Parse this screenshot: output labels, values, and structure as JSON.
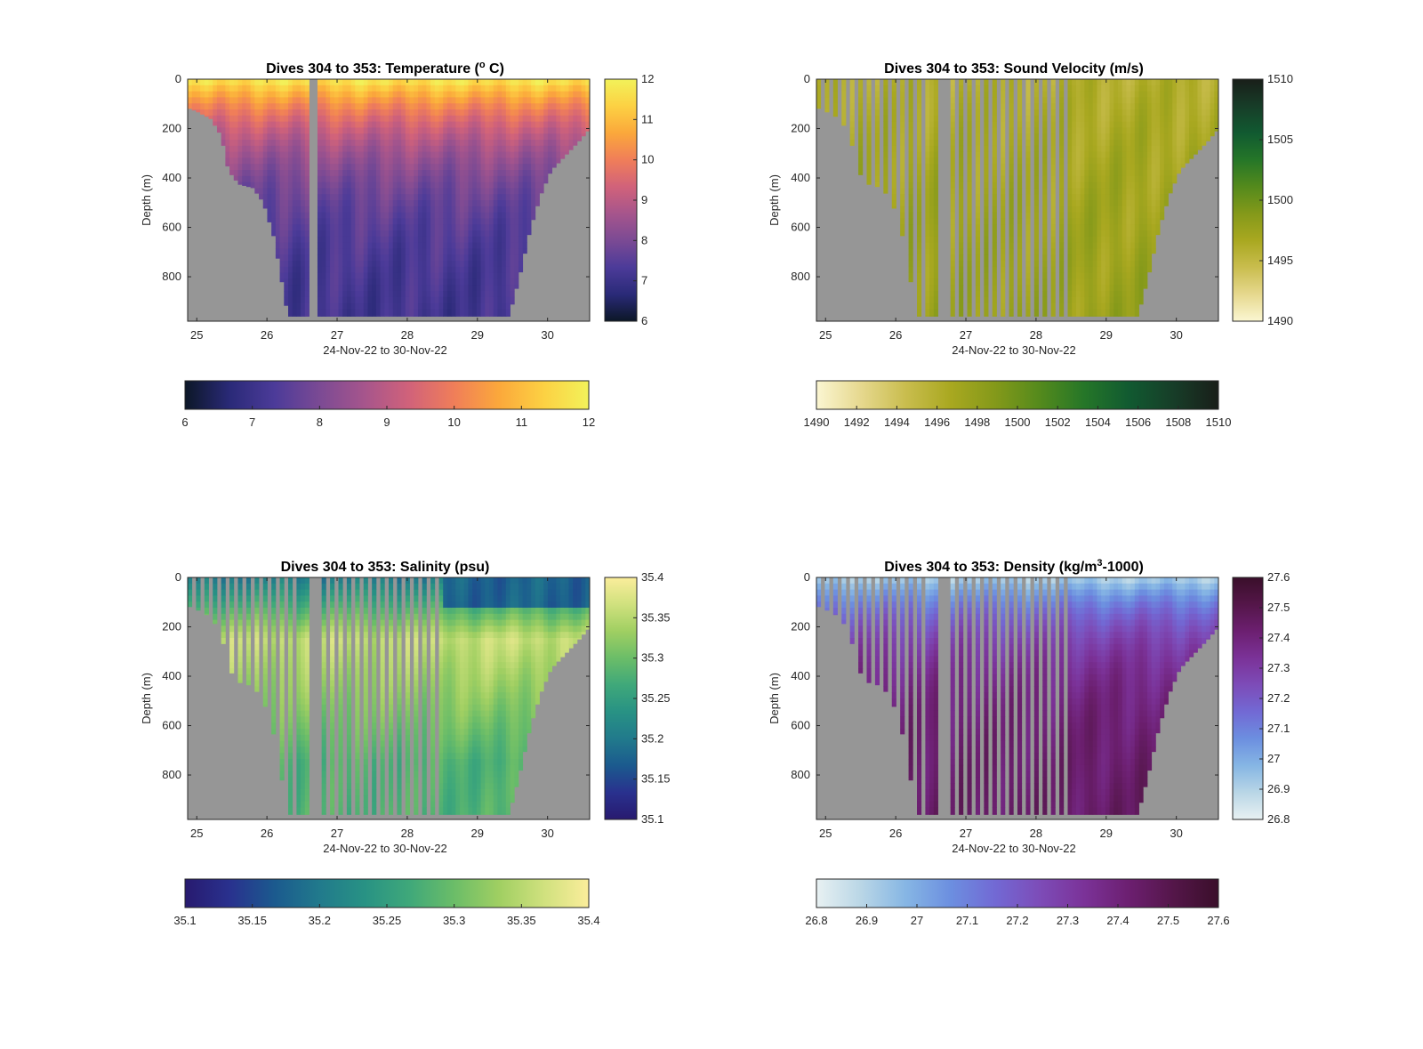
{
  "figure": {
    "background": "#ffffff",
    "nan_color": "#969696",
    "days": [
      25,
      26,
      27,
      28,
      29,
      30
    ]
  },
  "chart_data": [
    {
      "type": "heatmap",
      "id": "temperature",
      "title_prefix": "Dives 304 to 353: Temperature (",
      "title_sup": "o",
      "title_suffix": " C)",
      "xlabel": "24-Nov-22 to 30-Nov-22",
      "ylabel": "Depth (m)",
      "xlim": [
        24.87,
        30.6
      ],
      "ylim": [
        0,
        980
      ],
      "xticks": [
        "25",
        "26",
        "27",
        "28",
        "29",
        "30"
      ],
      "yticks": [
        "0",
        "200",
        "400",
        "600",
        "800"
      ],
      "clim": [
        6,
        12
      ],
      "colormap": [
        "#0c1727",
        "#2a2a78",
        "#4c3b99",
        "#7b4a94",
        "#a6558c",
        "#d1627a",
        "#f07e59",
        "#fba83b",
        "#fcd143",
        "#f2f25a"
      ],
      "colorbar_right_ticks": [
        "6",
        "7",
        "8",
        "9",
        "10",
        "11",
        "12"
      ],
      "colorbar_bottom_ticks": [
        "6",
        "7",
        "8",
        "9",
        "10",
        "11",
        "12"
      ],
      "value_model": {
        "surface": 11.8,
        "deep": 7.0,
        "scale_depth": 260
      },
      "profile_gaps": []
    },
    {
      "type": "heatmap",
      "id": "sound-velocity",
      "title_prefix": "Dives 304 to 353: Sound Velocity (m/s)",
      "title_sup": "",
      "title_suffix": "",
      "xlabel": "24-Nov-22 to 30-Nov-22",
      "ylabel": "Depth (m)",
      "xlim": [
        24.87,
        30.6
      ],
      "ylim": [
        0,
        980
      ],
      "xticks": [
        "25",
        "26",
        "27",
        "28",
        "29",
        "30"
      ],
      "yticks": [
        "0",
        "200",
        "400",
        "600",
        "800"
      ],
      "clim": [
        1490,
        1510
      ],
      "colormap": [
        "#fbf6d2",
        "#e6d88e",
        "#c9bd4e",
        "#a9a820",
        "#84991a",
        "#548a1c",
        "#257628",
        "#115a31",
        "#173d28",
        "#191e19"
      ],
      "colorbar_right_ticks": [
        "1490",
        "1495",
        "1500",
        "1505",
        "1510"
      ],
      "colorbar_bottom_ticks": [
        "1490",
        "1492",
        "1494",
        "1496",
        "1498",
        "1500",
        "1502",
        "1504",
        "1506",
        "1508",
        "1510"
      ],
      "value_model": {
        "surface": 1496.0,
        "deep": 1498.0,
        "scale_depth": 600
      },
      "profile_gaps": [
        [
          24.87,
          26.5
        ],
        [
          26.72,
          28.5
        ]
      ]
    },
    {
      "type": "heatmap",
      "id": "salinity",
      "title_prefix": "Dives 304 to 353: Salinity (psu)",
      "title_sup": "",
      "title_suffix": "",
      "xlabel": "24-Nov-22 to 30-Nov-22",
      "ylabel": "Depth (m)",
      "xlim": [
        24.87,
        30.6
      ],
      "ylim": [
        0,
        980
      ],
      "xticks": [
        "25",
        "26",
        "27",
        "28",
        "29",
        "30"
      ],
      "yticks": [
        "0",
        "200",
        "400",
        "600",
        "800"
      ],
      "clim": [
        35.1,
        35.4
      ],
      "colormap": [
        "#281a6f",
        "#29318e",
        "#1b5a8e",
        "#217a8c",
        "#289284",
        "#3fa87a",
        "#6bbd68",
        "#a0cf62",
        "#d0e17e",
        "#fbed9b"
      ],
      "colorbar_right_ticks": [
        "35.1",
        "35.15",
        "35.2",
        "35.25",
        "35.3",
        "35.35",
        "35.4"
      ],
      "colorbar_bottom_ticks": [
        "35.1",
        "35.15",
        "35.2",
        "35.25",
        "35.3",
        "35.35",
        "35.4"
      ],
      "value_model": {
        "surface": 35.2,
        "peak": 35.36,
        "peak_depth": 250,
        "deep": 35.28
      },
      "profile_gaps": [
        [
          24.87,
          26.5
        ],
        [
          26.72,
          28.5
        ]
      ]
    },
    {
      "type": "heatmap",
      "id": "density",
      "title_prefix": "Dives 304 to 353: Density (kg/m",
      "title_sup": "3",
      "title_suffix": "-1000)",
      "xlabel": "24-Nov-22 to 30-Nov-22",
      "ylabel": "Depth (m)",
      "xlim": [
        24.87,
        30.6
      ],
      "ylim": [
        0,
        980
      ],
      "xticks": [
        "25",
        "26",
        "27",
        "28",
        "29",
        "30"
      ],
      "yticks": [
        "0",
        "200",
        "400",
        "600",
        "800"
      ],
      "clim": [
        26.8,
        27.6
      ],
      "colormap": [
        "#e8f1f2",
        "#b9d6e6",
        "#86b6e4",
        "#6c8fe0",
        "#7269d4",
        "#7d4cb8",
        "#7b3298",
        "#6c1f70",
        "#541649",
        "#3a0f2a"
      ],
      "colorbar_right_ticks": [
        "26.8",
        "26.9",
        "27",
        "27.1",
        "27.2",
        "27.3",
        "27.4",
        "27.5",
        "27.6"
      ],
      "colorbar_bottom_ticks": [
        "26.8",
        "26.9",
        "27",
        "27.1",
        "27.2",
        "27.3",
        "27.4",
        "27.5",
        "27.6"
      ],
      "value_model": {
        "surface": 26.9,
        "deep": 27.45,
        "scale_depth": 220
      },
      "profile_gaps": [
        [
          24.87,
          26.5
        ],
        [
          26.72,
          28.5
        ]
      ]
    }
  ]
}
